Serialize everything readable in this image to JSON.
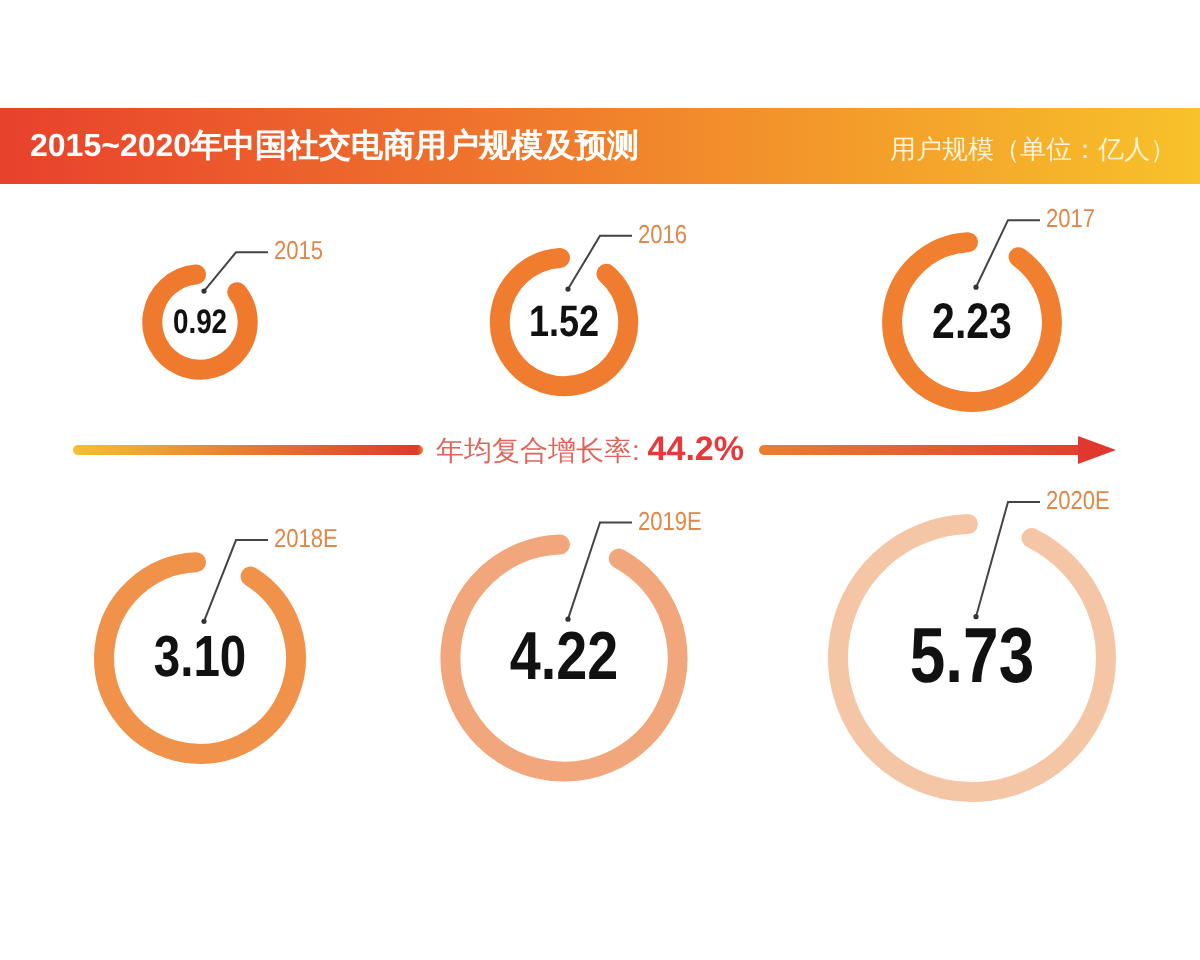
{
  "chart_data": {
    "type": "other",
    "title": "2015~2020年中国社交电商用户规模及预测",
    "subtitle": "用户规模（单位：亿人）",
    "categories": [
      "2015",
      "2016",
      "2017",
      "2018E",
      "2019E",
      "2020E"
    ],
    "values": [
      0.92,
      1.52,
      2.23,
      3.1,
      4.22,
      5.73
    ],
    "value_labels": [
      "0.92",
      "1.52",
      "2.23",
      "3.10",
      "4.22",
      "5.73"
    ],
    "colors": [
      "#ef7a2e",
      "#ef7c2f",
      "#f0802f",
      "#f0924a",
      "#f2a67c",
      "#f5c6a6"
    ],
    "annotations": [
      "年均复合增长率: 44.2%"
    ]
  }
}
